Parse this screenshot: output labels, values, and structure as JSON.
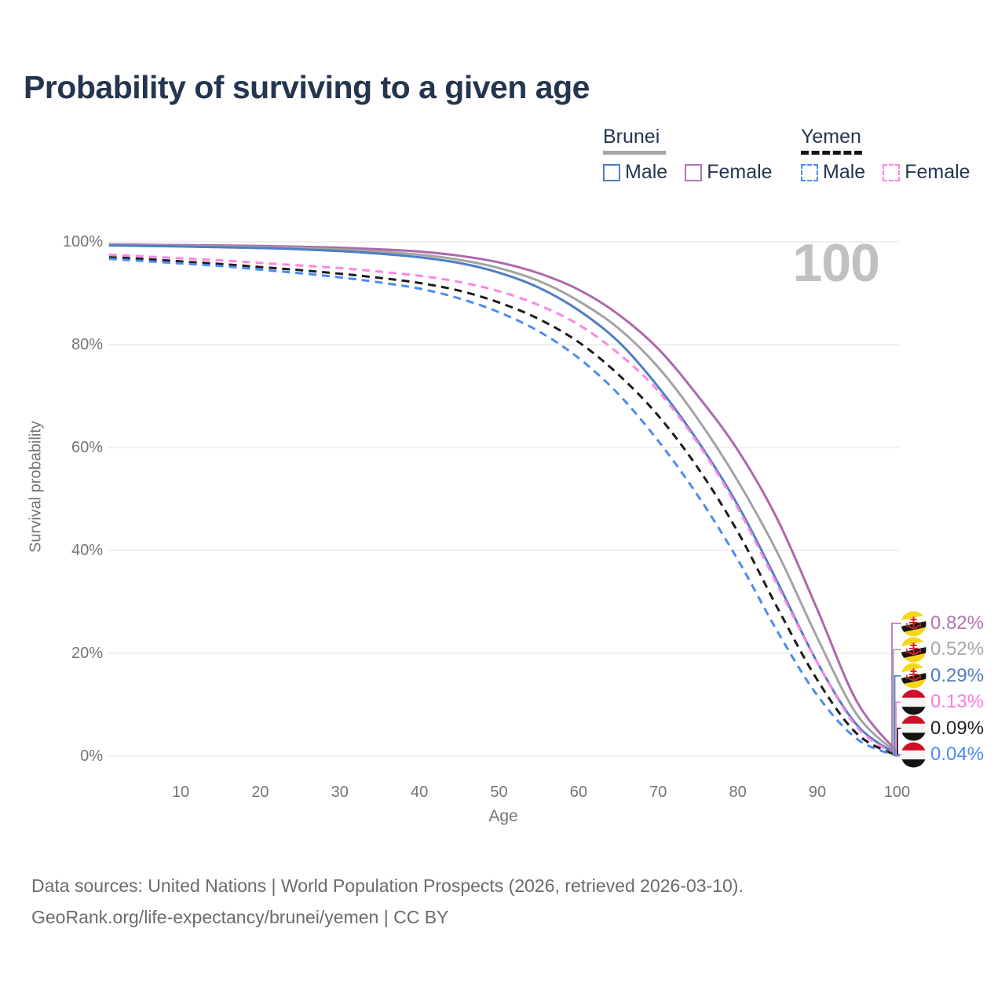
{
  "header": {
    "title": "Probability of surviving to a given age"
  },
  "age_counter": "100",
  "legend": {
    "groups": [
      {
        "label": "Brunei",
        "line_style": "solid",
        "marker_color": "#a6a6a6",
        "items": [
          {
            "label": "Male",
            "color": "#4d7fc0"
          },
          {
            "label": "Female",
            "color": "#b273ae"
          }
        ]
      },
      {
        "label": "Yemen",
        "line_style": "dashed",
        "marker_color": "#141414",
        "items": [
          {
            "label": "Male",
            "color": "#4b8cf0"
          },
          {
            "label": "Female",
            "color": "#ff85e0"
          }
        ]
      }
    ]
  },
  "axes": {
    "y_title": "Survival probability",
    "x_title": "Age",
    "y_ticks": [
      "100%",
      "80%",
      "60%",
      "40%",
      "20%",
      "0%"
    ],
    "y_tick_values": [
      100,
      80,
      60,
      40,
      20,
      0
    ],
    "x_ticks": [
      "10",
      "20",
      "30",
      "40",
      "50",
      "60",
      "70",
      "80",
      "90",
      "100"
    ],
    "x_tick_values": [
      10,
      20,
      30,
      40,
      50,
      60,
      70,
      80,
      90,
      100
    ]
  },
  "end_labels": [
    {
      "flag": "brunei",
      "value": "0.82%",
      "color": "#b273ae"
    },
    {
      "flag": "brunei",
      "value": "0.52%",
      "color": "#a8a8a8"
    },
    {
      "flag": "brunei",
      "value": "0.29%",
      "color": "#4d7fc0"
    },
    {
      "flag": "yemen",
      "value": "0.13%",
      "color": "#ff77e0"
    },
    {
      "flag": "yemen",
      "value": "0.09%",
      "color": "#1f1f1f"
    },
    {
      "flag": "yemen",
      "value": "0.04%",
      "color": "#4b8cf0"
    }
  ],
  "footer": {
    "line1": "Data sources: United Nations | World Population Prospects (2026, retrieved 2026-03-10).",
    "line2": "GeoRank.org/life-expectancy/brunei/yemen | CC BY"
  },
  "chart_data": {
    "type": "line",
    "title": "Probability of surviving to a given age",
    "xlabel": "Age",
    "ylabel": "Survival probability",
    "x_range": [
      1,
      100
    ],
    "ylim": [
      0,
      100
    ],
    "grid": "horizontal",
    "x": [
      1,
      5,
      10,
      15,
      20,
      25,
      30,
      35,
      40,
      45,
      50,
      55,
      60,
      65,
      70,
      75,
      80,
      85,
      90,
      95,
      100
    ],
    "series": [
      {
        "name": "Brunei Female",
        "country": "Brunei",
        "sex": "Female",
        "style": "solid",
        "color": "#ad68ab",
        "end_label": "0.82%",
        "values": [
          99.5,
          99.45,
          99.35,
          99.3,
          99.2,
          99.05,
          98.85,
          98.55,
          98.1,
          97.3,
          96.0,
          93.9,
          90.7,
          85.9,
          79.2,
          70.0,
          59.5,
          46.0,
          28.5,
          10.5,
          0.82
        ]
      },
      {
        "name": "Brunei",
        "country": "Brunei",
        "sex": "Both",
        "style": "solid",
        "color": "#a3a3a3",
        "end_label": "0.52%",
        "values": [
          99.4,
          99.3,
          99.2,
          99.1,
          99.0,
          98.8,
          98.5,
          98.1,
          97.5,
          96.5,
          94.9,
          92.4,
          88.5,
          83.2,
          75.6,
          65.5,
          53.5,
          39.5,
          23.0,
          8.0,
          0.52
        ]
      },
      {
        "name": "Brunei Male",
        "country": "Brunei",
        "sex": "Male",
        "style": "solid",
        "color": "#4d7fc0",
        "end_label": "0.29%",
        "values": [
          99.3,
          99.2,
          99.1,
          98.95,
          98.8,
          98.55,
          98.2,
          97.7,
          97.0,
          95.9,
          94.0,
          91.1,
          86.7,
          80.6,
          71.8,
          61.2,
          48.8,
          33.8,
          18.2,
          6.0,
          0.29
        ]
      },
      {
        "name": "Yemen Female",
        "country": "Yemen",
        "sex": "Female",
        "style": "dashed",
        "color": "#ff85e0",
        "end_label": "0.13%",
        "values": [
          97.5,
          97.2,
          96.8,
          96.4,
          95.9,
          95.4,
          94.9,
          94.2,
          93.4,
          92.2,
          90.4,
          87.7,
          83.9,
          78.3,
          71.0,
          60.8,
          48.2,
          33.2,
          18.2,
          5.6,
          0.13
        ]
      },
      {
        "name": "Yemen",
        "country": "Yemen",
        "sex": "Both",
        "style": "dashed",
        "color": "#1c1c1c",
        "end_label": "0.09%",
        "values": [
          97.0,
          96.7,
          96.2,
          95.7,
          95.1,
          94.5,
          93.8,
          93.0,
          92.0,
          90.5,
          88.2,
          85.0,
          80.5,
          74.2,
          66.2,
          56.0,
          43.6,
          28.8,
          14.8,
          4.3,
          0.09
        ]
      },
      {
        "name": "Yemen Male",
        "country": "Yemen",
        "sex": "Male",
        "style": "dashed",
        "color": "#4b8cf0",
        "end_label": "0.04%",
        "values": [
          96.7,
          96.3,
          95.8,
          95.3,
          94.6,
          93.9,
          93.1,
          92.1,
          90.9,
          89.0,
          86.3,
          82.6,
          77.4,
          70.4,
          61.3,
          50.6,
          38.2,
          24.2,
          11.8,
          3.3,
          0.04
        ]
      }
    ]
  }
}
